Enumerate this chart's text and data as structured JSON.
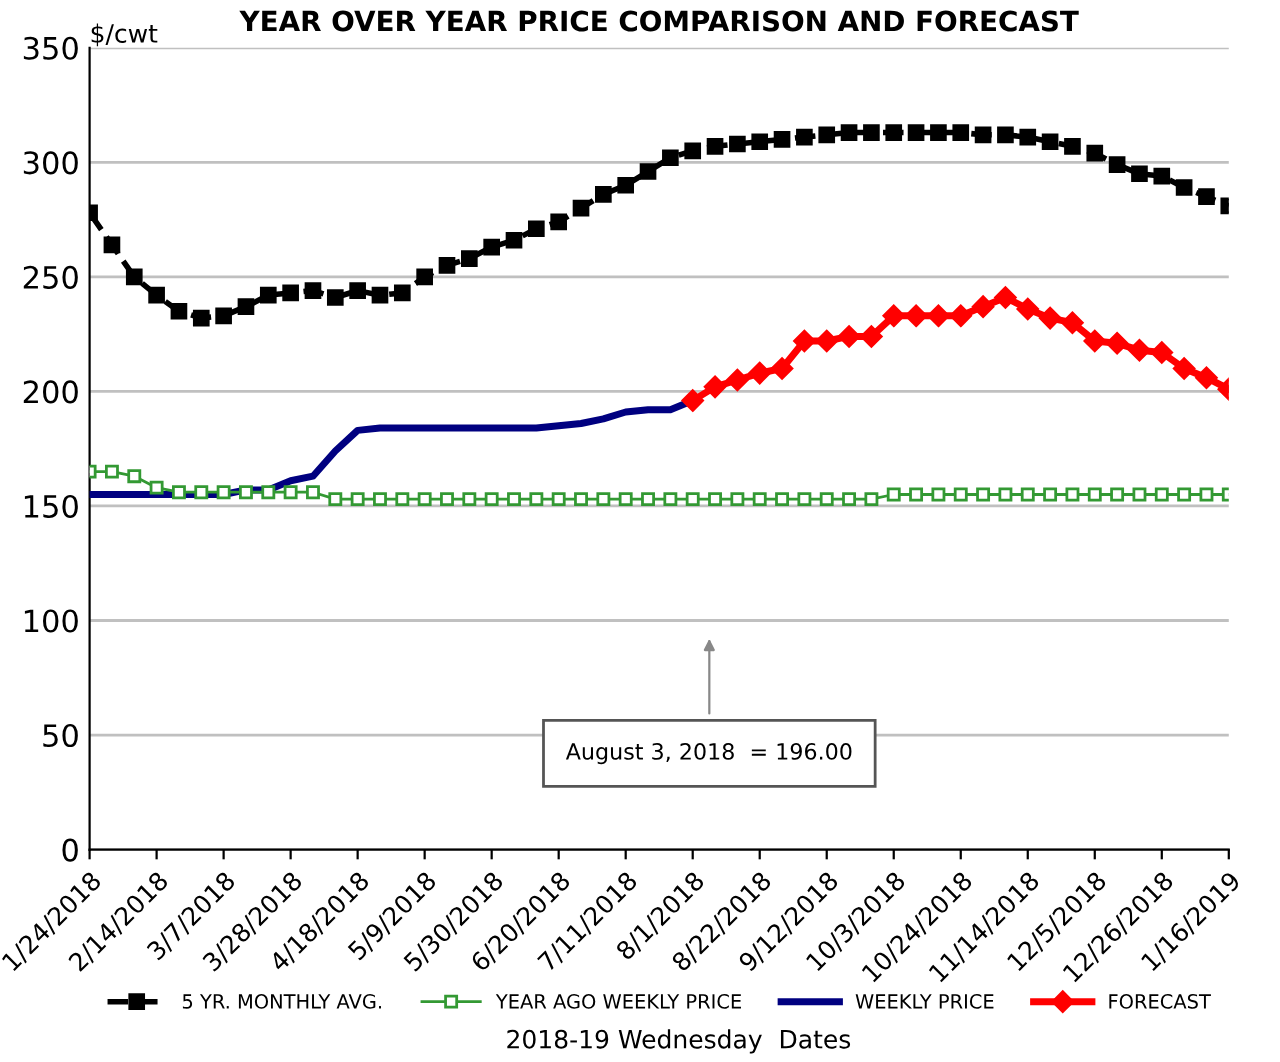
{
  "chart_data": {
    "type": "line",
    "title": "YEAR OVER YEAR PRICE COMPARISON AND FORECAST",
    "ylabel": "$/cwt",
    "xlabel": "2018-19 Wednesday  Dates",
    "x": [
      "2018-01-24",
      "2018-01-31",
      "2018-02-07",
      "2018-02-14",
      "2018-02-21",
      "2018-02-28",
      "2018-03-07",
      "2018-03-14",
      "2018-03-21",
      "2018-03-28",
      "2018-04-04",
      "2018-04-11",
      "2018-04-18",
      "2018-04-25",
      "2018-05-02",
      "2018-05-09",
      "2018-05-16",
      "2018-05-23",
      "2018-05-30",
      "2018-06-06",
      "2018-06-13",
      "2018-06-20",
      "2018-06-27",
      "2018-07-04",
      "2018-07-11",
      "2018-07-18",
      "2018-07-25",
      "2018-08-01",
      "2018-08-08",
      "2018-08-15",
      "2018-08-22",
      "2018-08-29",
      "2018-09-05",
      "2018-09-12",
      "2018-09-19",
      "2018-09-26",
      "2018-10-03",
      "2018-10-10",
      "2018-10-17",
      "2018-10-24",
      "2018-10-31",
      "2018-11-07",
      "2018-11-14",
      "2018-11-21",
      "2018-11-28",
      "2018-12-05",
      "2018-12-12",
      "2018-12-19",
      "2018-12-26",
      "2019-01-02",
      "2019-01-09",
      "2019-01-16"
    ],
    "series": [
      {
        "name": "5 YR. MONTHLY AVG.",
        "color": "#000000",
        "marker": "square",
        "line_style": "dashed",
        "values": [
          278,
          264,
          250,
          242,
          235,
          232,
          233,
          237,
          242,
          243,
          244,
          241,
          244,
          242,
          243,
          250,
          255,
          258,
          263,
          266,
          271,
          274,
          280,
          286,
          290,
          296,
          302,
          305,
          307,
          308,
          309,
          310,
          311,
          312,
          313,
          313,
          313,
          313,
          313,
          313,
          312,
          312,
          311,
          309,
          307,
          304,
          299,
          295,
          294,
          289,
          285,
          281
        ]
      },
      {
        "name": "YEAR AGO WEEKLY PRICE",
        "color": "#339933",
        "marker": "square",
        "line_style": "solid",
        "values": [
          165,
          165,
          163,
          158,
          156,
          156,
          156,
          156,
          156,
          156,
          156,
          153,
          153,
          153,
          153,
          153,
          153,
          153,
          153,
          153,
          153,
          153,
          153,
          153,
          153,
          153,
          153,
          153,
          153,
          153,
          153,
          153,
          153,
          153,
          153,
          153,
          155,
          155,
          155,
          155,
          155,
          155,
          155,
          155,
          155,
          155,
          155,
          155,
          155,
          155,
          155,
          155
        ]
      },
      {
        "name": "WEEKLY PRICE",
        "color": "#000080",
        "marker": "none",
        "line_style": "solid",
        "values": [
          155,
          155,
          155,
          155,
          155,
          155,
          155,
          157,
          157,
          161,
          163,
          174,
          183,
          184,
          184,
          184,
          184,
          184,
          184,
          184,
          184,
          185,
          186,
          188,
          191,
          192,
          192,
          196,
          null,
          null,
          null,
          null,
          null,
          null,
          null,
          null,
          null,
          null,
          null,
          null,
          null,
          null,
          null,
          null,
          null,
          null,
          null,
          null,
          null,
          null,
          null,
          null
        ]
      },
      {
        "name": "FORECAST",
        "color": "#ff0000",
        "marker": "diamond",
        "line_style": "solid",
        "values": [
          null,
          null,
          null,
          null,
          null,
          null,
          null,
          null,
          null,
          null,
          null,
          null,
          null,
          null,
          null,
          null,
          null,
          null,
          null,
          null,
          null,
          null,
          null,
          null,
          null,
          null,
          null,
          196,
          202,
          205,
          208,
          210,
          222,
          222,
          224,
          224,
          233,
          233,
          233,
          233,
          237,
          241,
          236,
          232,
          230,
          222,
          221,
          218,
          217,
          210,
          206,
          201
        ]
      }
    ],
    "ylim": [
      0,
      350
    ],
    "yticks": [
      0,
      50,
      100,
      150,
      200,
      250,
      300,
      350
    ],
    "xlim": [
      "2018-01-24",
      "2019-01-16"
    ],
    "xticks": [
      {
        "value": "2018-01-24",
        "label": "1/24/2018"
      },
      {
        "value": "2018-02-14",
        "label": "2/14/2018"
      },
      {
        "value": "2018-03-07",
        "label": "3/7/2018"
      },
      {
        "value": "2018-03-28",
        "label": "3/28/2018"
      },
      {
        "value": "2018-04-18",
        "label": "4/18/2018"
      },
      {
        "value": "2018-05-09",
        "label": "5/9/2018"
      },
      {
        "value": "2018-05-30",
        "label": "5/30/2018"
      },
      {
        "value": "2018-06-20",
        "label": "6/20/2018"
      },
      {
        "value": "2018-07-11",
        "label": "7/11/2018"
      },
      {
        "value": "2018-08-01",
        "label": "8/1/2018"
      },
      {
        "value": "2018-08-22",
        "label": "8/22/2018"
      },
      {
        "value": "2018-09-12",
        "label": "9/12/2018"
      },
      {
        "value": "2018-10-03",
        "label": "10/3/2018"
      },
      {
        "value": "2018-10-24",
        "label": "10/24/2018"
      },
      {
        "value": "2018-11-14",
        "label": "11/14/2018"
      },
      {
        "value": "2018-12-05",
        "label": "12/5/2018"
      },
      {
        "value": "2018-12-26",
        "label": "12/26/2018"
      },
      {
        "value": "2019-01-16",
        "label": "1/16/2019"
      }
    ],
    "annotations": [
      "August 3, 2018  = 196.00"
    ],
    "grid": "y",
    "legend": "bottom"
  }
}
